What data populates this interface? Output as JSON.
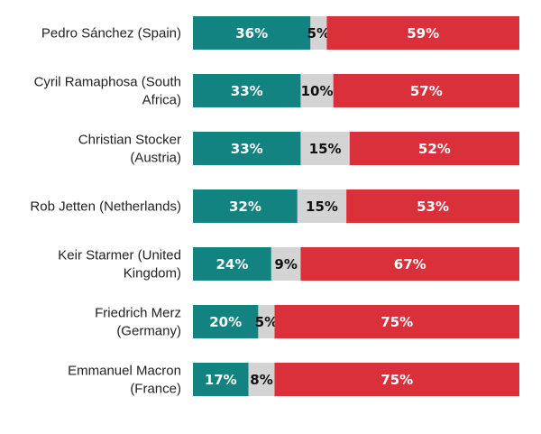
{
  "chart_data": {
    "type": "bar",
    "orientation": "horizontal",
    "stacked": true,
    "title": "",
    "xlabel": "",
    "ylabel": "",
    "xlim": [
      0,
      100
    ],
    "legend": "none",
    "categories": [
      "Pedro Sánchez (Spain)",
      "Cyril Ramaphosa (South Africa)",
      "Christian Stocker (Austria)",
      "Rob Jetten (Netherlands)",
      "Keir Starmer (United Kingdom)",
      "Friedrich Merz (Germany)",
      "Emmanuel Macron (France)"
    ],
    "category_lines": [
      [
        "Pedro Sánchez (Spain)"
      ],
      [
        "Cyril Ramaphosa (South",
        "Africa)"
      ],
      [
        "Christian Stocker",
        "(Austria)"
      ],
      [
        "Rob Jetten (Netherlands)"
      ],
      [
        "Keir Starmer (United",
        "Kingdom)"
      ],
      [
        "Friedrich Merz",
        "(Germany)"
      ],
      [
        "Emmanuel Macron",
        "(France)"
      ]
    ],
    "series": [
      {
        "name": "series-1",
        "color": "#138381",
        "label_color": "#ffffff",
        "values": [
          36,
          33,
          33,
          32,
          24,
          20,
          17
        ]
      },
      {
        "name": "series-2",
        "color": "#d4d4d4",
        "label_color": "#111111",
        "values": [
          5,
          10,
          15,
          15,
          9,
          5,
          8
        ]
      },
      {
        "name": "series-3",
        "color": "#d9303a",
        "label_color": "#ffffff",
        "values": [
          59,
          57,
          52,
          53,
          67,
          75,
          75
        ]
      }
    ],
    "value_suffix": "%"
  }
}
